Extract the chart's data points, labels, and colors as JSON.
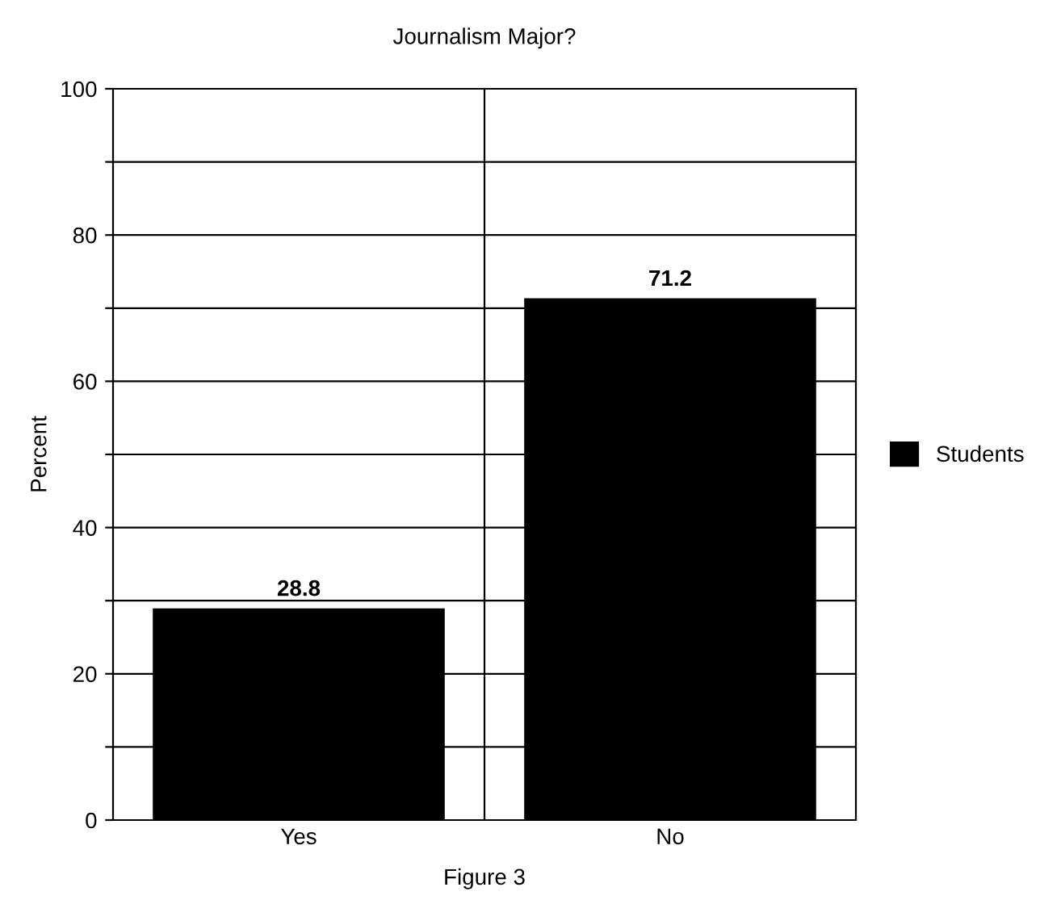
{
  "chart_data": {
    "type": "bar",
    "title": "Journalism Major?",
    "ylabel": "Percent",
    "categories": [
      "Yes",
      "No"
    ],
    "series": [
      {
        "name": "Students",
        "color": "#000000",
        "values": [
          28.8,
          71.2
        ]
      }
    ],
    "ylim": [
      0,
      100
    ],
    "yticks": [
      0,
      {
        "value": 10,
        "label": null
      },
      20,
      {
        "value": 30,
        "label": null
      },
      40,
      {
        "value": 50,
        "label": null
      },
      60,
      {
        "value": 70,
        "label": null
      },
      80,
      {
        "value": 90,
        "label": null
      },
      100
    ],
    "grid": true,
    "legend": "right",
    "data_labels": true,
    "annotations": [
      "Figure 3"
    ]
  }
}
